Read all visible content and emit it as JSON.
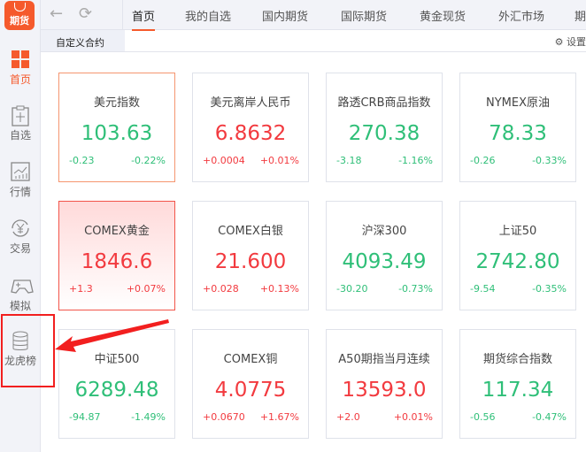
{
  "app": {
    "logo_text": "期货"
  },
  "sidebar": {
    "items": [
      {
        "label": "首页",
        "icon": "grid-icon",
        "active": true
      },
      {
        "label": "自选",
        "icon": "clipboard-plus-icon"
      },
      {
        "label": "行情",
        "icon": "chart-icon"
      },
      {
        "label": "交易",
        "icon": "yen-cycle-icon"
      },
      {
        "label": "模拟",
        "icon": "gamepad-icon"
      },
      {
        "label": "龙虎榜",
        "icon": "database-icon"
      }
    ]
  },
  "topbar": {
    "tabs": [
      "首页",
      "我的自选",
      "国内期货",
      "国际期货",
      "黄金现货",
      "外汇市场",
      "期"
    ]
  },
  "subbar": {
    "tab": "自定义合约",
    "settings": "设置"
  },
  "colors": {
    "up": "#f23a3f",
    "down": "#2fbf78",
    "accent": "#f55a2c",
    "highlight": "#f21f1f"
  },
  "cards": [
    {
      "name": "美元指数",
      "value": "103.63",
      "change": "-0.23",
      "pct": "-0.22%",
      "dir": "dn"
    },
    {
      "name": "美元离岸人民币",
      "value": "6.8632",
      "change": "+0.0004",
      "pct": "+0.01%",
      "dir": "up"
    },
    {
      "name": "路透CRB商品指数",
      "value": "270.38",
      "change": "-3.18",
      "pct": "-1.16%",
      "dir": "dn"
    },
    {
      "name": "NYMEX原油",
      "value": "78.33",
      "change": "-0.26",
      "pct": "-0.33%",
      "dir": "dn"
    },
    {
      "name": "COMEX黄金",
      "value": "1846.6",
      "change": "+1.3",
      "pct": "+0.07%",
      "dir": "up"
    },
    {
      "name": "COMEX白银",
      "value": "21.600",
      "change": "+0.028",
      "pct": "+0.13%",
      "dir": "up"
    },
    {
      "name": "沪深300",
      "value": "4093.49",
      "change": "-30.20",
      "pct": "-0.73%",
      "dir": "dn"
    },
    {
      "name": "上证50",
      "value": "2742.80",
      "change": "-9.54",
      "pct": "-0.35%",
      "dir": "dn"
    },
    {
      "name": "中证500",
      "value": "6289.48",
      "change": "-94.87",
      "pct": "-1.49%",
      "dir": "dn"
    },
    {
      "name": "COMEX铜",
      "value": "4.0775",
      "change": "+0.0670",
      "pct": "+1.67%",
      "dir": "up"
    },
    {
      "name": "A50期指当月连续",
      "value": "13593.0",
      "change": "+2.0",
      "pct": "+0.01%",
      "dir": "up"
    },
    {
      "name": "期货综合指数",
      "value": "117.34",
      "change": "-0.56",
      "pct": "-0.47%",
      "dir": "dn"
    }
  ]
}
